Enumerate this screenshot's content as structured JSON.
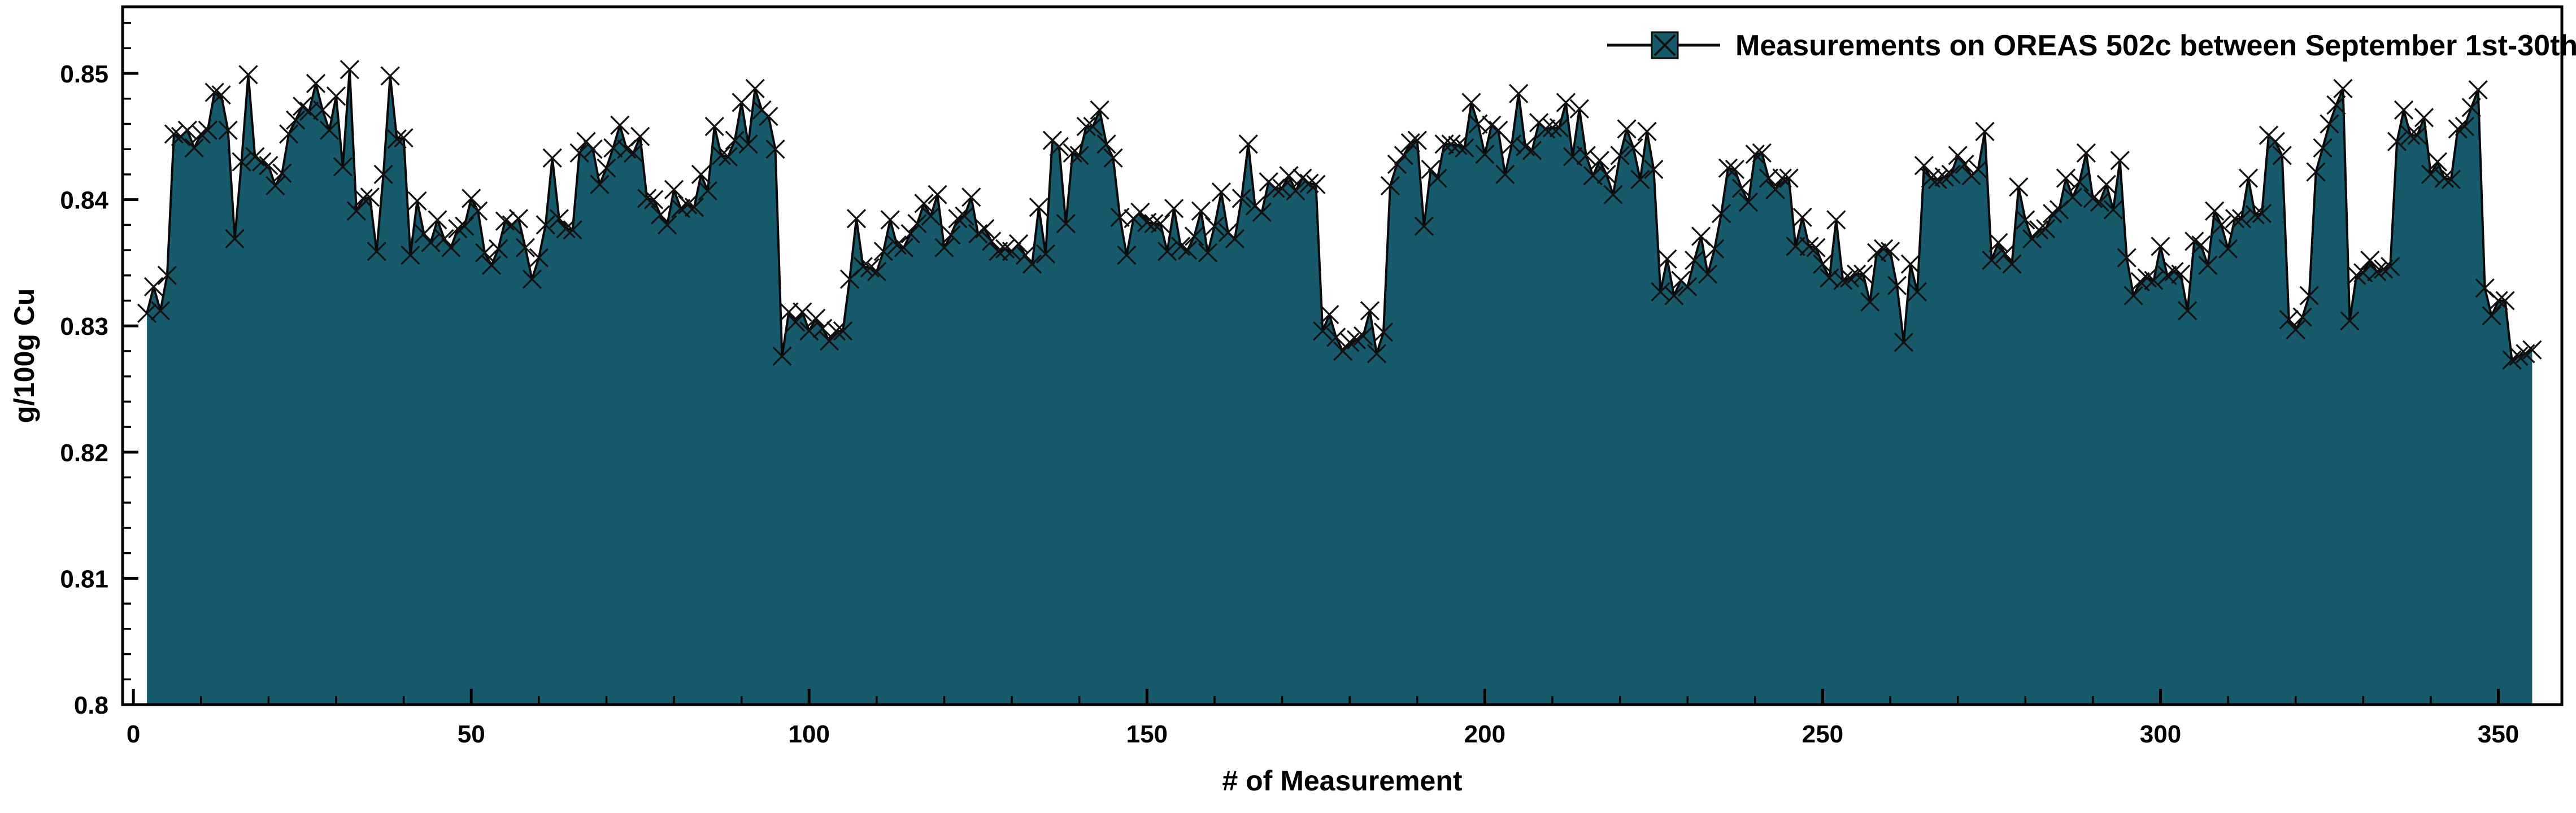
{
  "chart_data": {
    "type": "area",
    "legend_label": "Measurements on OREAS 502c between September 1st-30th",
    "xlabel": "# of Measurement",
    "ylabel": "g/100g Cu",
    "x_start": 2,
    "xlim": [
      -1.6,
      359.4
    ],
    "ylim": [
      0.8,
      0.85528
    ],
    "x_ticks": [
      0,
      50,
      100,
      150,
      200,
      250,
      300,
      350
    ],
    "x_minor_step": 10,
    "y_tick_values": [
      0.8,
      0.81,
      0.82,
      0.83,
      0.84,
      0.85
    ],
    "y_tick_labels": [
      "0.8",
      "0.81",
      "0.82",
      "0.83",
      "0.84",
      "0.85"
    ],
    "y_minor_step": 0.002,
    "grid": false,
    "legend_position": "upper right",
    "colors": {
      "fill": "#175a6b",
      "line": "#0a0a0a",
      "marker": "#111111",
      "axis": "#000000",
      "background": "#ffffff"
    },
    "values": [
      0.831,
      0.8331,
      0.8312,
      0.834,
      0.8452,
      0.845,
      0.8455,
      0.8441,
      0.8452,
      0.8455,
      0.8485,
      0.8483,
      0.8455,
      0.8369,
      0.843,
      0.8499,
      0.8434,
      0.843,
      0.8427,
      0.8411,
      0.8421,
      0.8452,
      0.8463,
      0.8474,
      0.847,
      0.8492,
      0.8471,
      0.8455,
      0.8482,
      0.8426,
      0.8503,
      0.8391,
      0.8401,
      0.8402,
      0.8359,
      0.842,
      0.8498,
      0.8448,
      0.8449,
      0.8356,
      0.8399,
      0.8373,
      0.8366,
      0.8384,
      0.8369,
      0.8362,
      0.8377,
      0.8379,
      0.8401,
      0.8391,
      0.8358,
      0.8348,
      0.8361,
      0.8383,
      0.838,
      0.8385,
      0.8362,
      0.8337,
      0.8354,
      0.838,
      0.8433,
      0.8385,
      0.8377,
      0.8376,
      0.8437,
      0.8446,
      0.844,
      0.8412,
      0.8425,
      0.8441,
      0.8459,
      0.844,
      0.8437,
      0.845,
      0.8401,
      0.84,
      0.8388,
      0.838,
      0.8408,
      0.8393,
      0.8396,
      0.8394,
      0.842,
      0.8407,
      0.8458,
      0.8435,
      0.8434,
      0.8447,
      0.8477,
      0.8444,
      0.8488,
      0.8471,
      0.8466,
      0.844,
      0.8276,
      0.8311,
      0.8303,
      0.8311,
      0.8296,
      0.8306,
      0.8298,
      0.8288,
      0.8296,
      0.8296,
      0.8337,
      0.8385,
      0.8347,
      0.8346,
      0.8343,
      0.8359,
      0.8384,
      0.8364,
      0.8362,
      0.8373,
      0.8381,
      0.8397,
      0.8387,
      0.8404,
      0.8362,
      0.8372,
      0.8385,
      0.8387,
      0.8402,
      0.8373,
      0.8377,
      0.8367,
      0.8359,
      0.8361,
      0.8359,
      0.8365,
      0.8356,
      0.8349,
      0.8394,
      0.8357,
      0.8447,
      0.8442,
      0.8381,
      0.8437,
      0.8435,
      0.8458,
      0.8458,
      0.8471,
      0.8444,
      0.8433,
      0.8386,
      0.8356,
      0.8385,
      0.839,
      0.8382,
      0.8381,
      0.8381,
      0.8359,
      0.8393,
      0.8363,
      0.836,
      0.8371,
      0.8391,
      0.8358,
      0.8379,
      0.8406,
      0.8374,
      0.8369,
      0.8401,
      0.8444,
      0.8395,
      0.839,
      0.8414,
      0.8409,
      0.8409,
      0.8419,
      0.8407,
      0.8417,
      0.8413,
      0.8412,
      0.8296,
      0.8309,
      0.8291,
      0.828,
      0.8287,
      0.8289,
      0.8292,
      0.8312,
      0.8278,
      0.8295,
      0.8411,
      0.8428,
      0.8435,
      0.8445,
      0.8447,
      0.8379,
      0.8424,
      0.8417,
      0.8444,
      0.8444,
      0.8443,
      0.8441,
      0.8477,
      0.846,
      0.8436,
      0.8459,
      0.8455,
      0.842,
      0.8444,
      0.8484,
      0.8442,
      0.8439,
      0.8461,
      0.8456,
      0.8457,
      0.8457,
      0.8477,
      0.8434,
      0.8472,
      0.8435,
      0.8419,
      0.8431,
      0.842,
      0.8404,
      0.8435,
      0.8456,
      0.8441,
      0.8416,
      0.8454,
      0.8424,
      0.8327,
      0.8353,
      0.8324,
      0.8336,
      0.8331,
      0.8352,
      0.8371,
      0.8341,
      0.8361,
      0.8389,
      0.8425,
      0.8424,
      0.8409,
      0.8398,
      0.8436,
      0.8437,
      0.8417,
      0.8408,
      0.8417,
      0.8417,
      0.8363,
      0.8386,
      0.8363,
      0.8362,
      0.8349,
      0.8338,
      0.8384,
      0.8336,
      0.8338,
      0.8341,
      0.8341,
      0.8319,
      0.8358,
      0.8361,
      0.8359,
      0.8332,
      0.8287,
      0.8349,
      0.8327,
      0.8427,
      0.8417,
      0.8416,
      0.8418,
      0.842,
      0.8435,
      0.8428,
      0.8419,
      0.8424,
      0.8454,
      0.8352,
      0.8366,
      0.8357,
      0.8349,
      0.841,
      0.8384,
      0.8369,
      0.8376,
      0.8377,
      0.8389,
      0.8392,
      0.8417,
      0.8402,
      0.8414,
      0.8437,
      0.8401,
      0.8398,
      0.8412,
      0.8392,
      0.8431,
      0.8354,
      0.8324,
      0.8335,
      0.8338,
      0.8336,
      0.8363,
      0.834,
      0.8343,
      0.8341,
      0.8312,
      0.8367,
      0.8364,
      0.8348,
      0.8391,
      0.838,
      0.8361,
      0.8385,
      0.8385,
      0.8417,
      0.8388,
      0.8389,
      0.8451,
      0.8446,
      0.8435,
      0.8305,
      0.8297,
      0.8307,
      0.8324,
      0.8422,
      0.8441,
      0.846,
      0.8475,
      0.8488,
      0.8304,
      0.834,
      0.8342,
      0.8352,
      0.8343,
      0.8345,
      0.8347,
      0.8446,
      0.8471,
      0.8451,
      0.8451,
      0.8465,
      0.842,
      0.843,
      0.8417,
      0.8416,
      0.8456,
      0.8458,
      0.8473,
      0.8487,
      0.833,
      0.8308,
      0.832,
      0.832,
      0.8273,
      0.8276,
      0.8278,
      0.8281
    ]
  }
}
